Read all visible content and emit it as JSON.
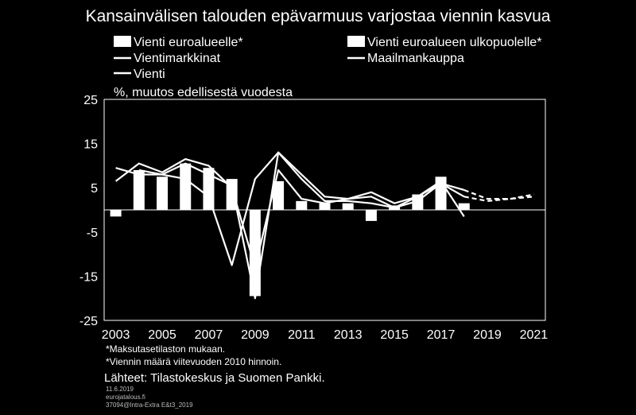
{
  "chart_data": {
    "type": "bar",
    "title": "Kansainvälisen talouden epävarmuus varjostaa viennin kasvua",
    "ylabel": "%, muutos edellisestä vuodesta",
    "ylim": [
      -25,
      25
    ],
    "y_ticks": [
      "25",
      "15",
      "5",
      "-5",
      "-15",
      "-25"
    ],
    "x_tick_labels": [
      "2003",
      "2005",
      "2007",
      "2009",
      "2011",
      "2013",
      "2015",
      "2017",
      "2019",
      "2021"
    ],
    "years": [
      2003,
      2004,
      2005,
      2006,
      2007,
      2008,
      2009,
      2010,
      2011,
      2012,
      2013,
      2014,
      2015,
      2016,
      2017,
      2018,
      2019,
      2020,
      2021
    ],
    "series": [
      {
        "name": "Vienti euroalueelle*",
        "kind": "bar",
        "values": [
          -1.5,
          9,
          7.5,
          10.5,
          9.5,
          7,
          -19.5,
          6.5,
          2,
          1.5,
          1.5,
          -2.5,
          1,
          3.5,
          7.5,
          1.5,
          null,
          null,
          null
        ]
      },
      {
        "name": "Vienti euroalueen ulkopuolelle*",
        "kind": "bar",
        "values": [
          null,
          null,
          null,
          null,
          null,
          null,
          null,
          null,
          null,
          null,
          null,
          null,
          null,
          null,
          null,
          null,
          null,
          null,
          null
        ]
      },
      {
        "name": "Vientimarkkinat",
        "kind": "line",
        "values": [
          6.5,
          10.5,
          8.5,
          11.5,
          10,
          5,
          -13,
          9,
          2.5,
          1.5,
          2.5,
          4,
          1.5,
          3,
          6,
          3,
          2,
          2.5,
          3
        ],
        "projection_from": 2018
      },
      {
        "name": "Maailmankauppa",
        "kind": "line",
        "values": [
          9.5,
          8,
          8,
          7,
          3,
          -12.5,
          7,
          13,
          8,
          3,
          2.5,
          3,
          0.5,
          2,
          6,
          4.5,
          2.5,
          2.5,
          3.5
        ],
        "projection_from": 2018
      },
      {
        "name": "Vienti",
        "kind": "line",
        "values": [
          null,
          9,
          8,
          10.5,
          8,
          5.5,
          -20,
          13,
          7,
          2,
          2,
          1.5,
          0.5,
          3,
          6.5,
          -1.5,
          null,
          null,
          null
        ]
      }
    ]
  },
  "legend_positions_note": "",
  "notes": [
    "*Maksutasetilaston mukaan.",
    "*Viennin määrä viitevuoden 2010 hinnoin."
  ],
  "source": "Lähteet: Tilastokeskus ja Suomen Pankki.",
  "meta": [
    "11.6.2019",
    "eurojatalous.fi",
    "37094@Intra-Extra E&t3_2019"
  ]
}
